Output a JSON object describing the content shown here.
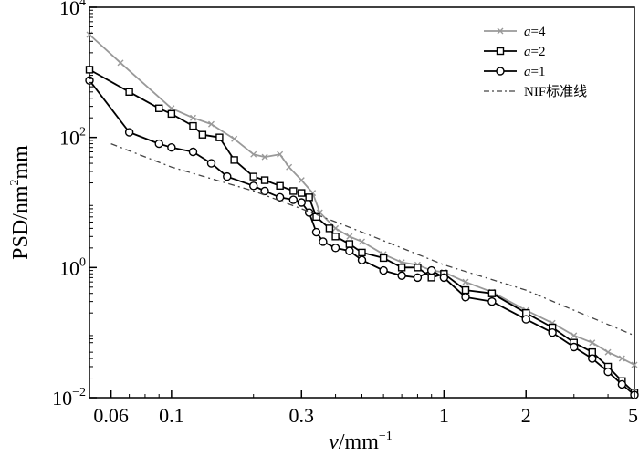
{
  "chart_data": {
    "type": "line",
    "xscale": "log",
    "yscale": "log",
    "xlim": [
      0.05,
      5
    ],
    "ylim": [
      0.01,
      10000
    ],
    "x_ticks": [
      {
        "value": 0.06,
        "label": "0.06"
      },
      {
        "value": 0.1,
        "label": "0.1"
      },
      {
        "value": 0.3,
        "label": "0.3"
      },
      {
        "value": 1,
        "label": "1"
      },
      {
        "value": 2,
        "label": "2"
      },
      {
        "value": 5,
        "label": "5"
      }
    ],
    "y_ticks": [
      {
        "value": 0.01,
        "base": "10",
        "exp": "−2"
      },
      {
        "value": 1,
        "base": "10",
        "exp": "0"
      },
      {
        "value": 100,
        "base": "10",
        "exp": "2"
      },
      {
        "value": 10000,
        "base": "10",
        "exp": "4"
      }
    ],
    "xlabel": {
      "var": "v",
      "unit": "/mm",
      "exp": "−1"
    },
    "ylabel": {
      "pre": "PSD/nm",
      "exp": "2",
      "post": "mm"
    },
    "grid": false,
    "legend_position": "top-right",
    "series": [
      {
        "name": "a=4",
        "legend_var": "a",
        "legend_val": "=4",
        "color": "#999999",
        "marker": "cross",
        "style": "solid",
        "x": [
          0.05,
          0.065,
          0.1,
          0.12,
          0.14,
          0.17,
          0.2,
          0.22,
          0.25,
          0.27,
          0.3,
          0.33,
          0.35,
          0.4,
          0.45,
          0.5,
          0.6,
          0.7,
          0.8,
          0.9,
          1.0,
          1.2,
          1.5,
          2.0,
          2.5,
          3.0,
          3.5,
          4.0,
          4.5,
          5.0
        ],
        "y": [
          3800,
          1400,
          280,
          200,
          160,
          95,
          55,
          50,
          55,
          35,
          22,
          14,
          7,
          4.0,
          3.0,
          2.5,
          1.6,
          1.2,
          1.1,
          0.9,
          0.85,
          0.6,
          0.42,
          0.22,
          0.14,
          0.09,
          0.07,
          0.05,
          0.04,
          0.032
        ]
      },
      {
        "name": "a=2",
        "legend_var": "a",
        "legend_val": "=2",
        "color": "#000000",
        "marker": "square",
        "style": "solid",
        "x": [
          0.05,
          0.07,
          0.09,
          0.1,
          0.12,
          0.13,
          0.15,
          0.17,
          0.2,
          0.22,
          0.25,
          0.28,
          0.3,
          0.32,
          0.34,
          0.38,
          0.4,
          0.45,
          0.5,
          0.6,
          0.7,
          0.8,
          0.9,
          1.0,
          1.2,
          1.5,
          2.0,
          2.5,
          3.0,
          3.5,
          4.0,
          4.5,
          5.0
        ],
        "y": [
          1100,
          500,
          280,
          230,
          150,
          110,
          100,
          45,
          25,
          22,
          18,
          15,
          14,
          12,
          6,
          4.0,
          3.0,
          2.3,
          1.7,
          1.4,
          1.0,
          1.0,
          0.7,
          0.8,
          0.45,
          0.4,
          0.2,
          0.12,
          0.07,
          0.05,
          0.03,
          0.018,
          0.012
        ]
      },
      {
        "name": "a=1",
        "legend_var": "a",
        "legend_val": "=1",
        "color": "#000000",
        "marker": "circle",
        "style": "solid",
        "x": [
          0.05,
          0.07,
          0.09,
          0.1,
          0.12,
          0.14,
          0.16,
          0.2,
          0.22,
          0.25,
          0.28,
          0.3,
          0.32,
          0.34,
          0.36,
          0.4,
          0.45,
          0.5,
          0.6,
          0.7,
          0.8,
          0.9,
          1.0,
          1.2,
          1.5,
          2.0,
          2.5,
          3.0,
          3.5,
          4.0,
          4.5,
          5.0
        ],
        "y": [
          750,
          120,
          80,
          70,
          60,
          40,
          25,
          18,
          15,
          12,
          11,
          10,
          7,
          3.5,
          2.5,
          2.0,
          1.8,
          1.3,
          0.9,
          0.75,
          0.7,
          0.9,
          0.7,
          0.35,
          0.3,
          0.16,
          0.1,
          0.06,
          0.04,
          0.025,
          0.016,
          0.011
        ]
      },
      {
        "name": "NIF标准线",
        "legend_var": "",
        "legend_val": "NIF标准线",
        "color": "#444444",
        "marker": "none",
        "style": "dashdot",
        "x": [
          0.06,
          0.1,
          0.2,
          0.3,
          0.5,
          1.0,
          2.0,
          3.0,
          5.0
        ],
        "y": [
          80,
          35,
          15,
          8,
          3.5,
          1.1,
          0.45,
          0.22,
          0.09
        ]
      }
    ]
  }
}
